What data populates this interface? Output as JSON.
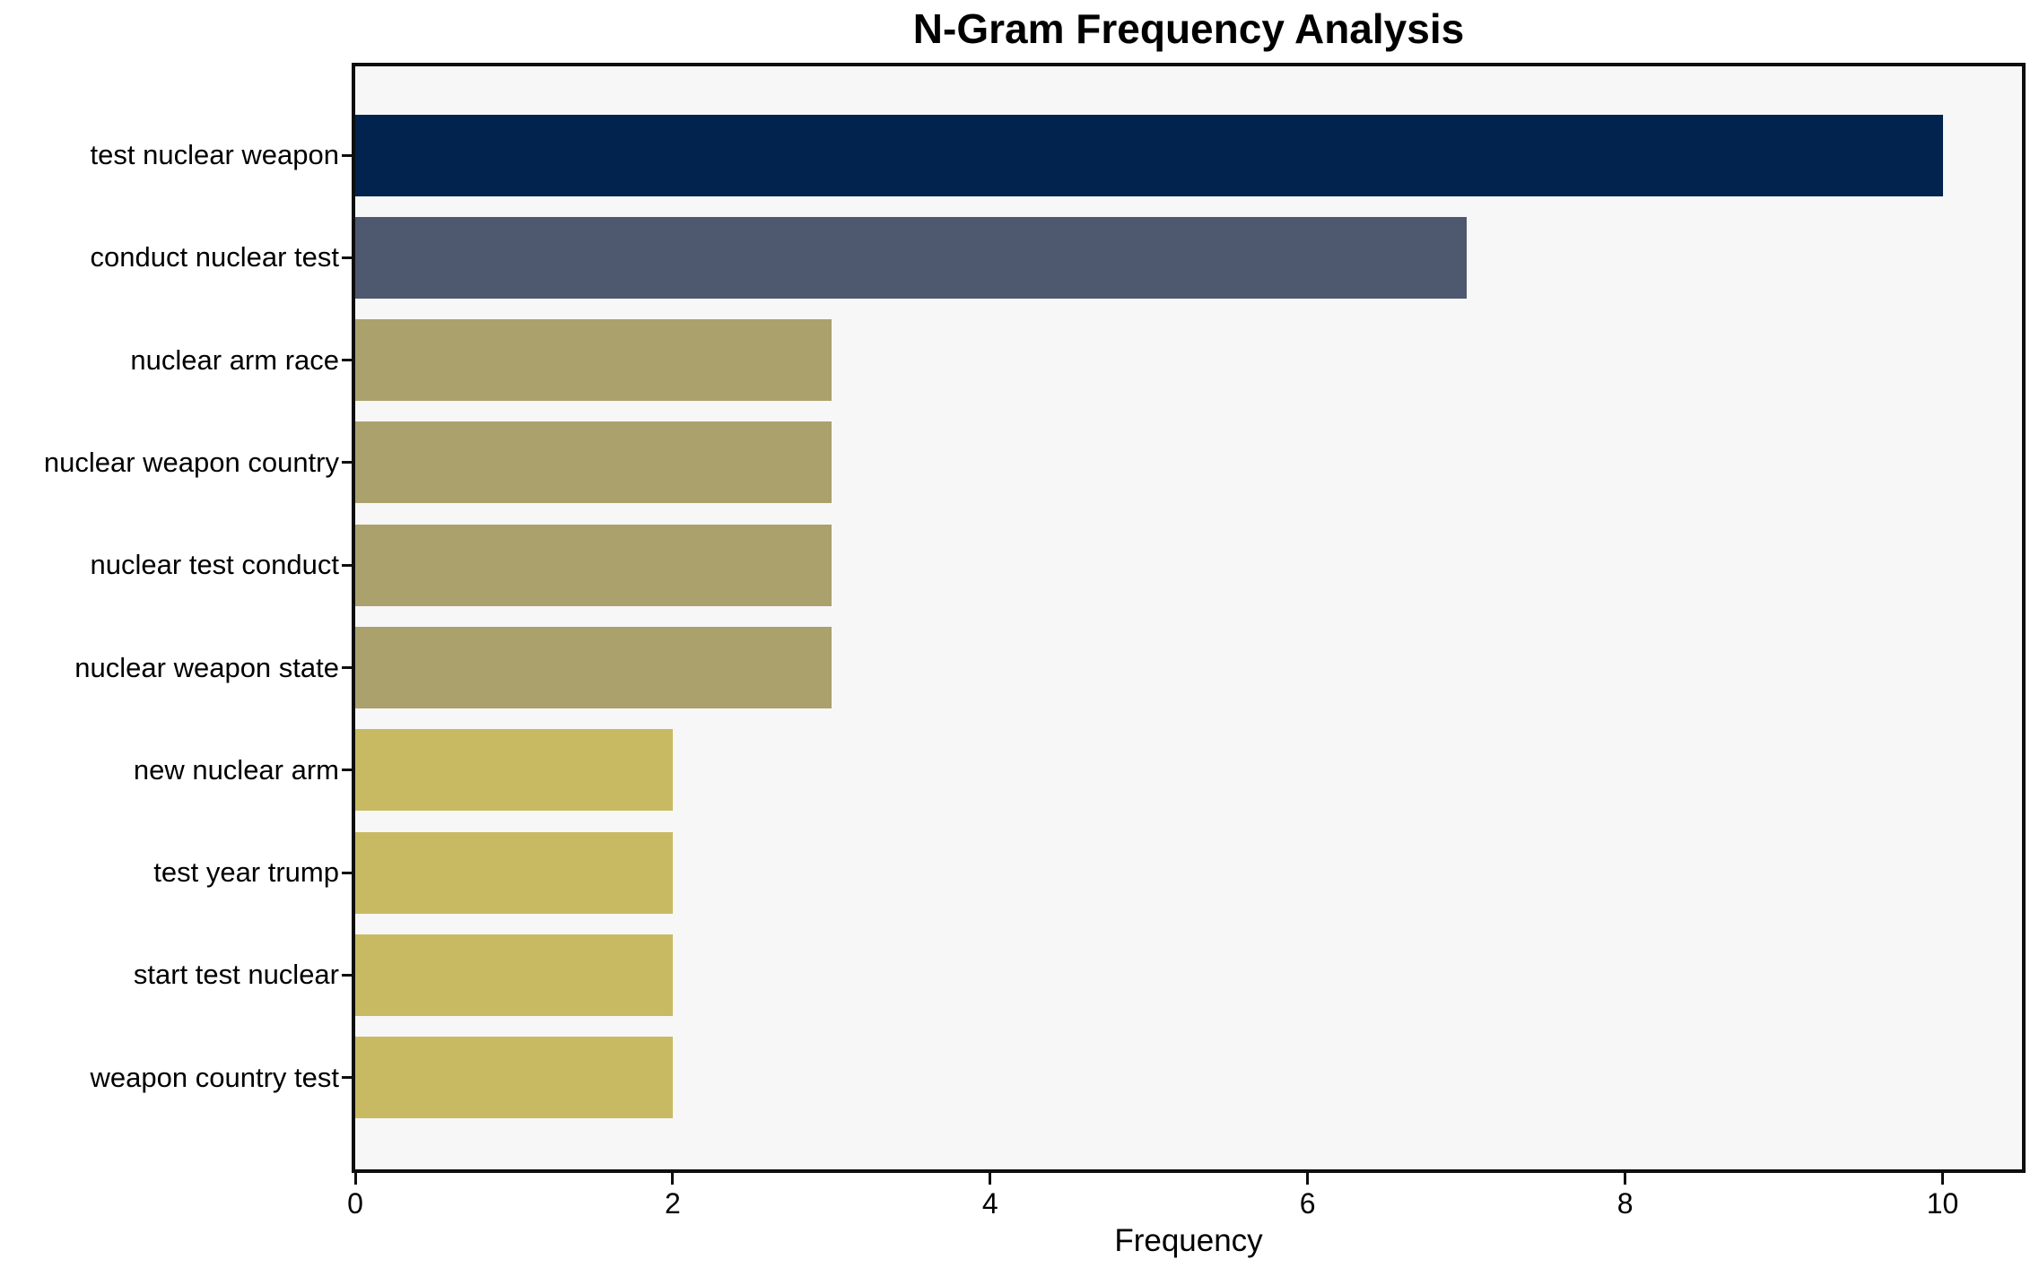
{
  "chart_data": {
    "type": "bar",
    "orientation": "horizontal",
    "title": "N-Gram Frequency Analysis",
    "xlabel": "Frequency",
    "ylabel": "",
    "categories": [
      "test nuclear weapon",
      "conduct nuclear test",
      "nuclear arm race",
      "nuclear weapon country",
      "nuclear test conduct",
      "nuclear weapon state",
      "new nuclear arm",
      "test year trump",
      "start test nuclear",
      "weapon country test"
    ],
    "values": [
      10,
      7,
      3,
      3,
      3,
      3,
      2,
      2,
      2,
      2
    ],
    "bar_colors": [
      "#01234e",
      "#4e586e",
      "#aba16d",
      "#aba16d",
      "#aba16d",
      "#aba16d",
      "#c8ba62",
      "#c8ba62",
      "#c8ba62",
      "#c8ba62"
    ],
    "xlim": [
      0,
      10.5
    ],
    "xticks": [
      0,
      2,
      4,
      6,
      8,
      10
    ],
    "grid": "off",
    "legend": "none",
    "colors": {
      "plot_background": "#f7f7f7",
      "page_background": "#ffffff",
      "spine": "#0e0e0e",
      "text": "#000000"
    }
  }
}
